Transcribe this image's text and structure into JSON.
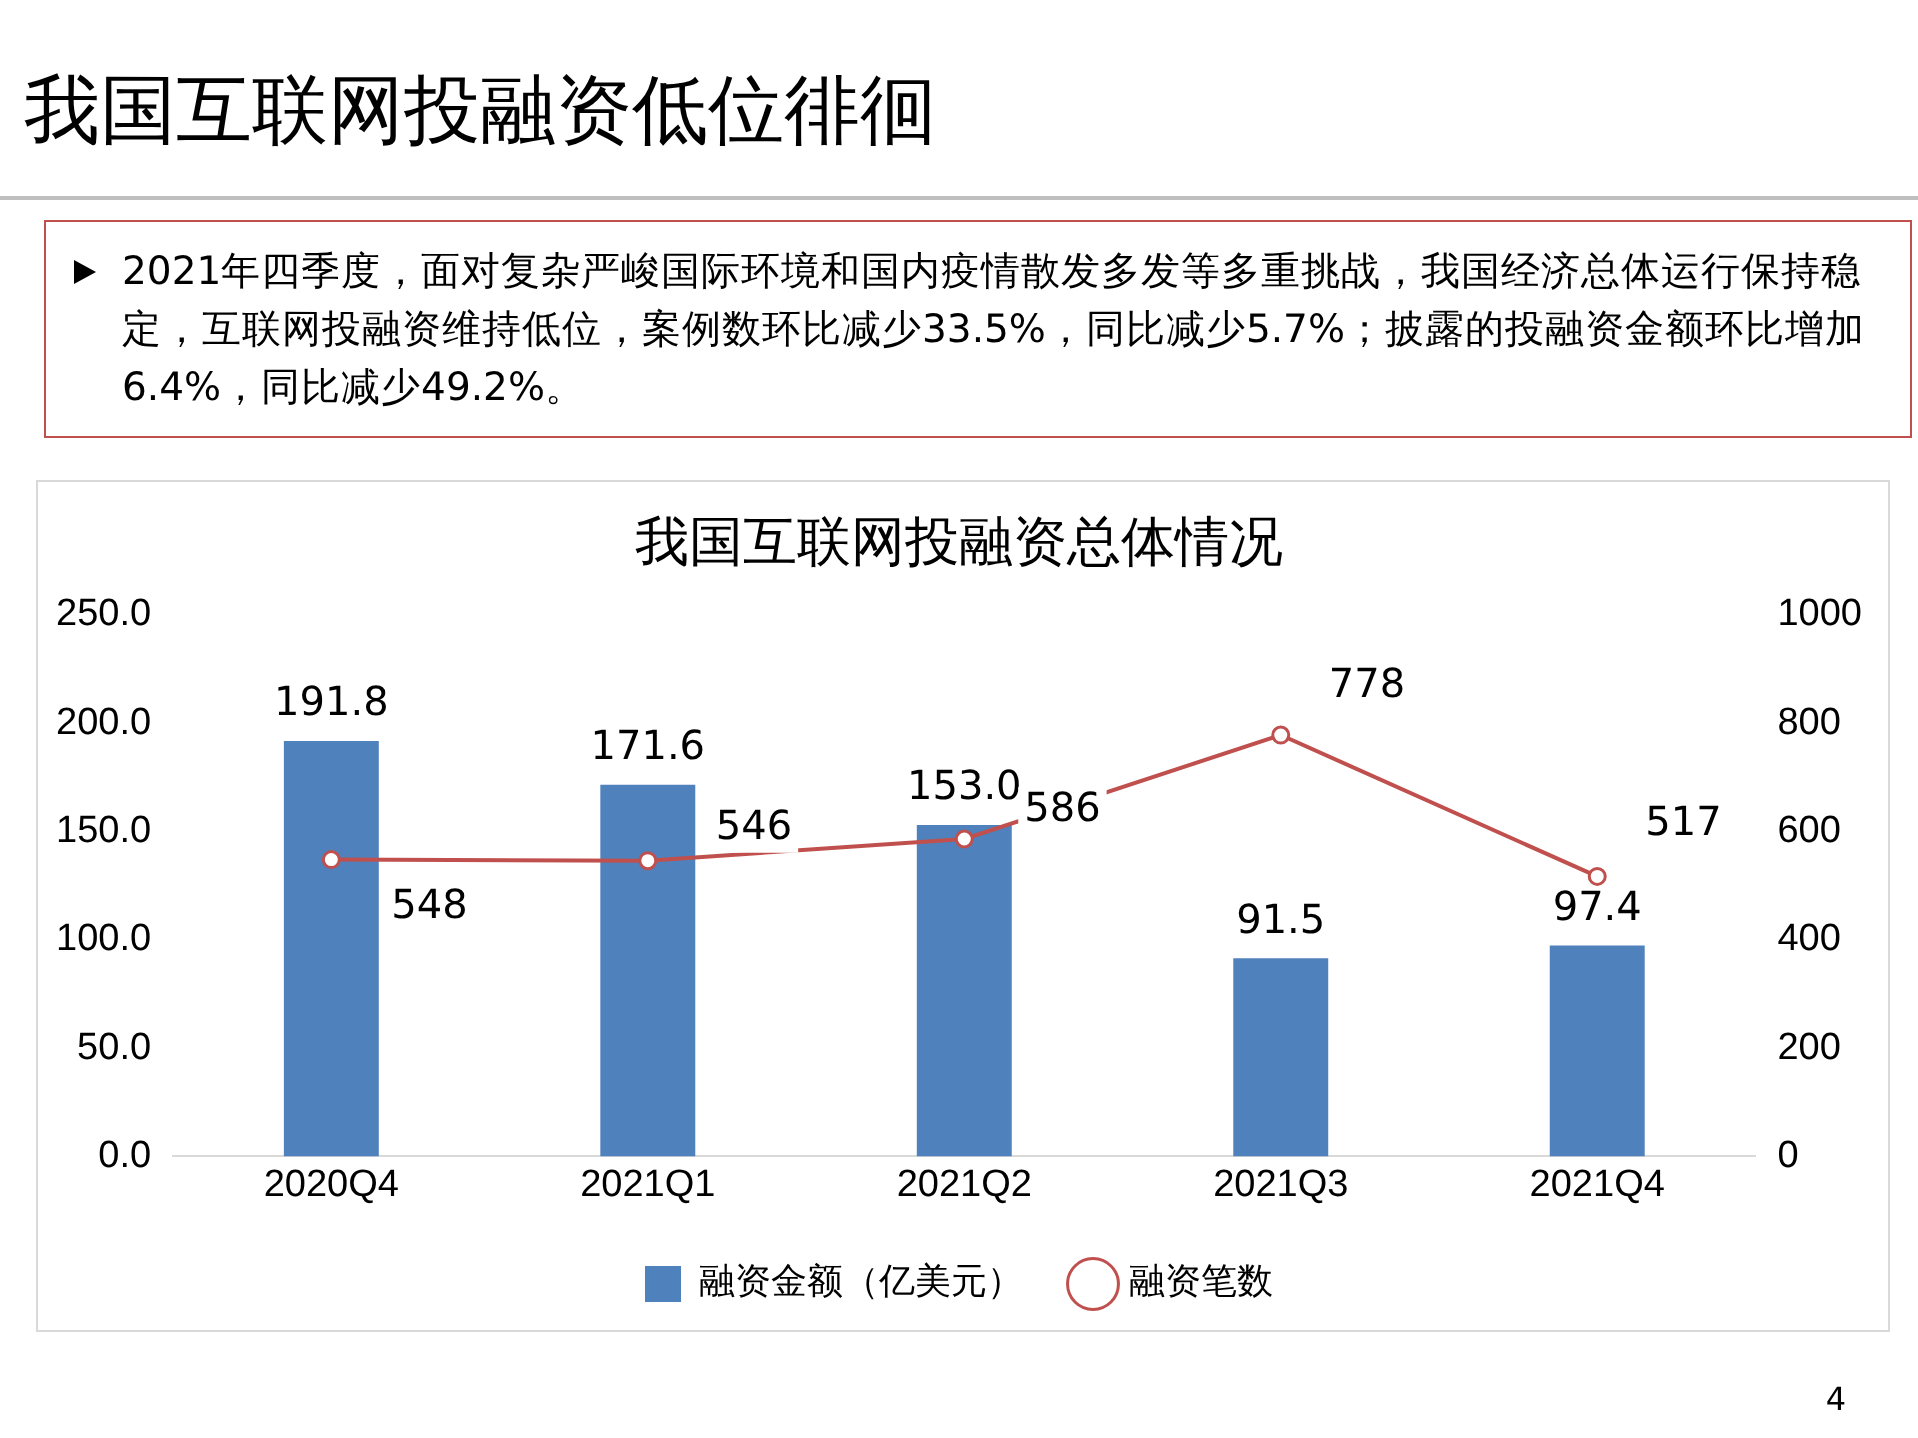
{
  "chart_data": {
    "type": "bar",
    "title": "我国互联网投融资总体情况",
    "annotations": [
      "我国互联网投融资低位徘徊",
      "2021年四季度，面对复杂严峻国际环境和国内疫情散发多发等多重挑战，我国经济总体运行保持稳定，互联网投融资维持低位，案例数环比减少33.5%，同比减少5.7%；披露的投融资金额环比增加 6.4%，同比减少49.2%。",
      "4"
    ],
    "categories": [
      "2020Q4",
      "2021Q1",
      "2021Q2",
      "2021Q3",
      "2021Q4"
    ],
    "series": [
      {
        "name": "融资金额（亿美元）",
        "color": "#4f81bd",
        "values": [
          191.8,
          171.6,
          153.0,
          91.5,
          97.4
        ],
        "value_labels": [
          "191.8",
          "171.6",
          "153.0",
          "91.5",
          "97.4"
        ]
      },
      {
        "name": "融资笔数",
        "type": "line",
        "axis": "y2",
        "color": "#c0504d",
        "values": [
          548,
          546,
          586,
          778,
          517
        ],
        "value_labels": [
          "548",
          "546",
          "586",
          "778",
          "517"
        ]
      }
    ],
    "ylim": [
      0,
      250
    ],
    "yticks": [
      {
        "value": 0,
        "label": "0.0"
      },
      {
        "value": 50,
        "label": "50.0"
      },
      {
        "value": 100,
        "label": "100.0"
      },
      {
        "value": 150,
        "label": "150.0"
      },
      {
        "value": 200,
        "label": "200.0"
      },
      {
        "value": 250,
        "label": "250.0"
      }
    ],
    "y2lim": [
      0,
      1000
    ],
    "y2ticks": [
      0,
      200,
      400,
      600,
      800,
      1000
    ],
    "grid": false,
    "legend": "bottom",
    "marker": "circle",
    "line_style": "solid"
  }
}
